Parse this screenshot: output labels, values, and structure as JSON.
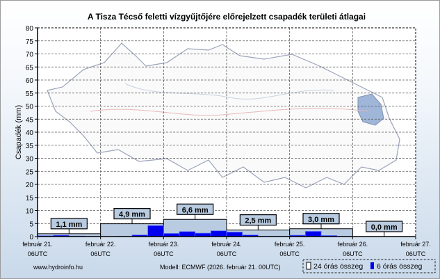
{
  "chart_data": {
    "type": "bar",
    "title": "A Tisza Técső feletti vízgyűjtőjére előrejelzett csapadék területi átlagai",
    "ylabel": "Csapadék (mm)",
    "xlabel": "",
    "ylim": [
      0,
      80
    ],
    "yticks": [
      0,
      5,
      10,
      15,
      20,
      25,
      30,
      35,
      40,
      45,
      50,
      55,
      60,
      65,
      70,
      75,
      80
    ],
    "grid": true,
    "xticks": [
      {
        "date": "február 21.",
        "time": "06UTC"
      },
      {
        "date": "február 22.",
        "time": "06UTC"
      },
      {
        "date": "február 23.",
        "time": "06UTC"
      },
      {
        "date": "február 24.",
        "time": "06UTC"
      },
      {
        "date": "február 25.",
        "time": "06UTC"
      },
      {
        "date": "február 26.",
        "time": "06UTC"
      },
      {
        "date": "február 27.",
        "time": "06UTC"
      }
    ],
    "series": [
      {
        "name": "24 órás összeg",
        "color": "#b9cbe0",
        "values": [
          1.1,
          4.9,
          6.6,
          2.5,
          3.0,
          0.0
        ],
        "labels": [
          "1,1 mm",
          "4,9 mm",
          "6,6 mm",
          "2,5 mm",
          "3,0 mm",
          "0,0 mm"
        ]
      },
      {
        "name": "6 órás összeg",
        "color": "#0000ee",
        "values": [
          0.3,
          0.5,
          0.2,
          0.1,
          0.0,
          0.1,
          0.6,
          4.2,
          1.2,
          1.9,
          1.3,
          2.2,
          1.7,
          0.6,
          0.1,
          0.1,
          0.5,
          2.0,
          0.4,
          0.1,
          0,
          0,
          0,
          0
        ]
      }
    ],
    "legend": "bottom-right"
  },
  "footer": {
    "source": "www.hydroinfo.hu",
    "model": "Modell: ECMWF (2026. február 21. 00UTC)"
  }
}
